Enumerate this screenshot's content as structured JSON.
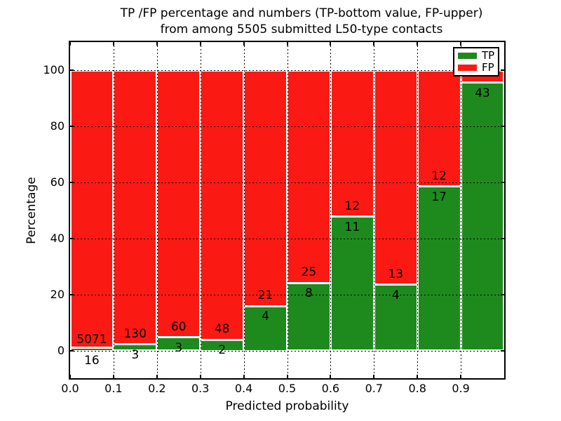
{
  "figure": {
    "title_line1": "TP /FP percentage and numbers (TP-bottom value, FP-upper)",
    "title_line2": "from among 5505 submitted L50-type contacts",
    "xlabel": "Predicted probability",
    "ylabel": "Percentage"
  },
  "legend": {
    "position": "upper right",
    "items": [
      {
        "label": "TP",
        "color": "#1e8a1e"
      },
      {
        "label": "FP",
        "color": "#fa1a13"
      }
    ]
  },
  "colors": {
    "tp": "#1e8a1e",
    "fp": "#fa1a13",
    "grid": "#000000",
    "spine": "#000000",
    "text": "#000000",
    "bar_edge": "#ffffff",
    "background": "#ffffff"
  },
  "chart_data": {
    "type": "bar",
    "variant": "stacked-percentage",
    "title": "TP /FP percentage and numbers (TP-bottom value, FP-upper) from among 5505 submitted L50-type contacts",
    "xlabel": "Predicted probability",
    "ylabel": "Percentage",
    "grid": "dotted",
    "legend_position": "upper right",
    "series_names": [
      "TP",
      "FP"
    ],
    "xlim": [
      0.0,
      1.0
    ],
    "ylim": [
      -10,
      110
    ],
    "bin_width": 0.1,
    "xtick_labels": [
      "0.0",
      "0.1",
      "0.2",
      "0.3",
      "0.4",
      "0.5",
      "0.6",
      "0.7",
      "0.8",
      "0.9"
    ],
    "ytick_values": [
      0,
      20,
      40,
      60,
      80,
      100
    ],
    "stack_total_pct": 100,
    "total_contacts_stated": 5505,
    "bins": [
      {
        "x0": 0.0,
        "x1": 0.1,
        "tp_count": 16,
        "fp_count": 5071,
        "tp_pct": 0.31
      },
      {
        "x0": 0.1,
        "x1": 0.2,
        "tp_count": 3,
        "fp_count": 130,
        "tp_pct": 2.26
      },
      {
        "x0": 0.2,
        "x1": 0.3,
        "tp_count": 3,
        "fp_count": 60,
        "tp_pct": 4.76
      },
      {
        "x0": 0.3,
        "x1": 0.4,
        "tp_count": 2,
        "fp_count": 48,
        "tp_pct": 4.0
      },
      {
        "x0": 0.4,
        "x1": 0.5,
        "tp_count": 4,
        "fp_count": 21,
        "tp_pct": 16.0
      },
      {
        "x0": 0.5,
        "x1": 0.6,
        "tp_count": 8,
        "fp_count": 25,
        "tp_pct": 24.24
      },
      {
        "x0": 0.6,
        "x1": 0.7,
        "tp_count": 11,
        "fp_count": 12,
        "tp_pct": 47.83
      },
      {
        "x0": 0.7,
        "x1": 0.8,
        "tp_count": 4,
        "fp_count": 13,
        "tp_pct": 23.53
      },
      {
        "x0": 0.8,
        "x1": 0.9,
        "tp_count": 17,
        "fp_count": 12,
        "tp_pct": 58.62
      },
      {
        "x0": 0.9,
        "x1": 1.0,
        "tp_count": 43,
        "fp_count": null,
        "tp_pct": 95.56
      }
    ]
  }
}
